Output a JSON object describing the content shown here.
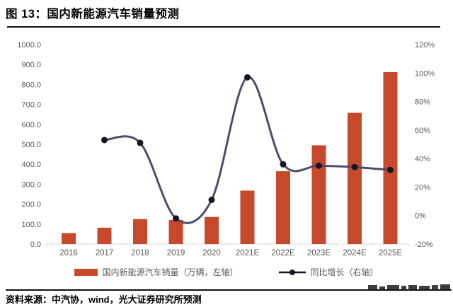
{
  "header": {
    "title": "图 13：国内新能源汽车销量预测"
  },
  "footer": {
    "source": "资料来源：中汽协，wind，光大证券研究所预测"
  },
  "colors": {
    "bar": "#c7492b",
    "line": "#4d4d6b",
    "marker": "#17171f",
    "axis_text": "#595959",
    "axis_line": "#d9d9d9",
    "divider": "#111111"
  },
  "legend": {
    "bar_label": "国内新能源汽车销量（万辆，左轴）",
    "line_label": "同比增长（右轴）"
  },
  "chart_data": {
    "type": "bar+line",
    "title": "图 13：国内新能源汽车销量预测",
    "categories": [
      "2016",
      "2017",
      "2018",
      "2019",
      "2020",
      "2021E",
      "2022E",
      "2023E",
      "2024E",
      "2025E"
    ],
    "series": [
      {
        "name": "国内新能源汽车销量（万辆，左轴）",
        "type": "bar",
        "axis": "left",
        "values": [
          55,
          82,
          125,
          121,
          136,
          268,
          365,
          495,
          658,
          862
        ]
      },
      {
        "name": "同比增长（右轴）",
        "type": "line",
        "axis": "right",
        "values": [
          null,
          53,
          51,
          -2,
          11,
          97,
          36,
          35,
          34,
          32
        ]
      }
    ],
    "left_axis": {
      "min": 0,
      "max": 1000,
      "step": 100,
      "tick_labels": [
        "0.0",
        "100.0",
        "200.0",
        "300.0",
        "400.0",
        "500.0",
        "600.0",
        "700.0",
        "800.0",
        "900.0",
        "1000.0"
      ]
    },
    "right_axis": {
      "min": -20,
      "max": 120,
      "step": 20,
      "tick_labels": [
        "-20%",
        "0%",
        "20%",
        "40%",
        "60%",
        "80%",
        "100%",
        "120%"
      ]
    },
    "grid": false,
    "legend_position": "bottom"
  }
}
